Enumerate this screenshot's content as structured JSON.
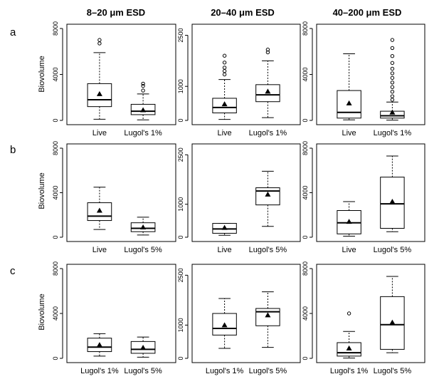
{
  "chart_data": {
    "type": "box",
    "column_titles": [
      "8–20 μm ESD",
      "20–40 μm ESD",
      "40–200 μm ESD"
    ],
    "row_labels": [
      "a",
      "b",
      "c"
    ],
    "ylabel": "Biovolume",
    "yticks_by_column": [
      [
        0,
        4000,
        8000
      ],
      [
        0,
        1000,
        2500
      ],
      [
        0,
        4000,
        8000
      ]
    ],
    "ylim_by_column": [
      [
        0,
        8000
      ],
      [
        0,
        2700
      ],
      [
        0,
        8000
      ]
    ],
    "legend": "",
    "panels": [
      {
        "row": "a",
        "col": 0,
        "categories": [
          "Live",
          "Lugol's 1%"
        ],
        "boxes": [
          {
            "whisker_low": 100,
            "q1": 1200,
            "median": 1800,
            "q3": 3200,
            "whisker_high": 5900,
            "mean": 2300,
            "outliers": [
              6700,
              7000
            ]
          },
          {
            "whisker_low": 50,
            "q1": 500,
            "median": 800,
            "q3": 1400,
            "whisker_high": 2300,
            "mean": 900,
            "outliers": [
              2600,
              3000,
              3200
            ]
          }
        ]
      },
      {
        "row": "a",
        "col": 1,
        "categories": [
          "Live",
          "Lugol's 1%"
        ],
        "boxes": [
          {
            "whisker_low": 30,
            "q1": 220,
            "median": 380,
            "q3": 650,
            "whisker_high": 1200,
            "mean": 480,
            "outliers": [
              1350,
              1450,
              1550,
              1700,
              1900
            ]
          },
          {
            "whisker_low": 80,
            "q1": 550,
            "median": 750,
            "q3": 1050,
            "whisker_high": 1750,
            "mean": 850,
            "outliers": [
              2000,
              2080
            ]
          }
        ]
      },
      {
        "row": "a",
        "col": 2,
        "categories": [
          "Live",
          "Lugol's 1%"
        ],
        "boxes": [
          {
            "whisker_low": 50,
            "q1": 200,
            "median": 700,
            "q3": 2600,
            "whisker_high": 5800,
            "mean": 1500,
            "outliers": []
          },
          {
            "whisker_low": 20,
            "q1": 200,
            "median": 400,
            "q3": 800,
            "whisker_high": 1600,
            "mean": 700,
            "outliers": [
              1800,
              2100,
              2500,
              2900,
              3300,
              3700,
              4100,
              4500,
              5000,
              5600,
              6300,
              7000
            ]
          }
        ]
      },
      {
        "row": "b",
        "col": 0,
        "categories": [
          "Live",
          "Lugol's 5%"
        ],
        "boxes": [
          {
            "whisker_low": 700,
            "q1": 1500,
            "median": 1900,
            "q3": 3100,
            "whisker_high": 4500,
            "mean": 2400,
            "outliers": []
          },
          {
            "whisker_low": 200,
            "q1": 500,
            "median": 800,
            "q3": 1300,
            "whisker_high": 1800,
            "mean": 900,
            "outliers": []
          }
        ]
      },
      {
        "row": "b",
        "col": 1,
        "categories": [
          "Live",
          "Lugol's 5%"
        ],
        "boxes": [
          {
            "whisker_low": 60,
            "q1": 120,
            "median": 250,
            "q3": 420,
            "whisker_high": 420,
            "mean": 290,
            "outliers": []
          },
          {
            "whisker_low": 330,
            "q1": 980,
            "median": 1400,
            "q3": 1500,
            "whisker_high": 2000,
            "mean": 1300,
            "outliers": []
          }
        ]
      },
      {
        "row": "b",
        "col": 2,
        "categories": [
          "Live",
          "Lugol's 5%"
        ],
        "boxes": [
          {
            "whisker_low": 100,
            "q1": 300,
            "median": 1300,
            "q3": 2400,
            "whisker_high": 3200,
            "mean": 1400,
            "outliers": []
          },
          {
            "whisker_low": 500,
            "q1": 800,
            "median": 3000,
            "q3": 5400,
            "whisker_high": 7300,
            "mean": 3200,
            "outliers": []
          }
        ]
      },
      {
        "row": "c",
        "col": 0,
        "categories": [
          "Lugol's 1%",
          "Lugol's 5%"
        ],
        "boxes": [
          {
            "whisker_low": 200,
            "q1": 600,
            "median": 1000,
            "q3": 1800,
            "whisker_high": 2200,
            "mean": 1200,
            "outliers": []
          },
          {
            "whisker_low": 100,
            "q1": 450,
            "median": 800,
            "q3": 1500,
            "whisker_high": 1900,
            "mean": 950,
            "outliers": []
          }
        ]
      },
      {
        "row": "c",
        "col": 1,
        "categories": [
          "Lugol's 1%",
          "Lugol's 5%"
        ],
        "boxes": [
          {
            "whisker_low": 300,
            "q1": 700,
            "median": 900,
            "q3": 1350,
            "whisker_high": 1800,
            "mean": 1000,
            "outliers": []
          },
          {
            "whisker_low": 330,
            "q1": 980,
            "median": 1400,
            "q3": 1500,
            "whisker_high": 2000,
            "mean": 1300,
            "outliers": []
          }
        ]
      },
      {
        "row": "c",
        "col": 2,
        "categories": [
          "Lugol's 1%",
          "Lugol's 5%"
        ],
        "boxes": [
          {
            "whisker_low": 20,
            "q1": 200,
            "median": 500,
            "q3": 1400,
            "whisker_high": 2400,
            "mean": 900,
            "outliers": [
              4000
            ]
          },
          {
            "whisker_low": 500,
            "q1": 800,
            "median": 3000,
            "q3": 5500,
            "whisker_high": 7300,
            "mean": 3200,
            "outliers": []
          }
        ]
      }
    ]
  }
}
